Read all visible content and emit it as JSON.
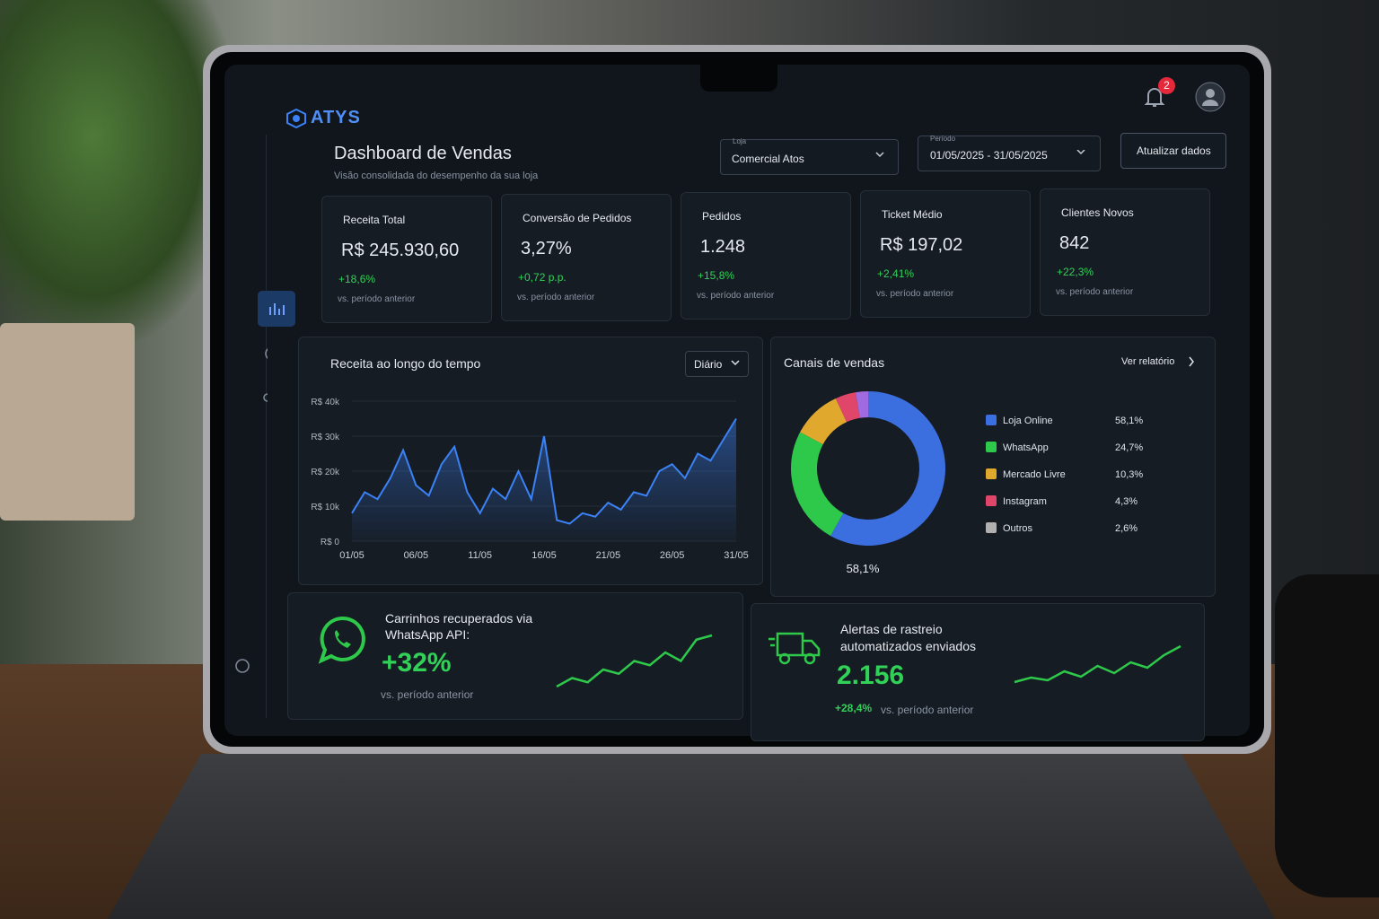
{
  "app": {
    "logo": "ATYS",
    "notifications": "2"
  },
  "header": {
    "title": "Dashboard de Vendas",
    "subtitle": "Visão consolidada do desempenho da sua loja",
    "store_label": "Loja",
    "store": "Comercial Atos",
    "period_label": "Período",
    "period": "01/05/2025 - 31/05/2025",
    "refresh": "Atualizar dados"
  },
  "kpis": [
    {
      "label": "Receita Total",
      "value": "R$ 245.930,60",
      "change": "+18,6%",
      "note": "vs. período anterior"
    },
    {
      "label": "Conversão de Pedidos",
      "value": "3,27%",
      "change": "+0,72 p.p.",
      "note": "vs. período anterior"
    },
    {
      "label": "Pedidos",
      "value": "1.248",
      "change": "+15,8%",
      "note": "vs. período anterior"
    },
    {
      "label": "Ticket Médio",
      "value": "R$ 197,02",
      "change": "+2,41%",
      "note": "vs. período anterior"
    },
    {
      "label": "Clientes Novos",
      "value": "842",
      "change": "+22,3%",
      "note": "vs. período anterior"
    }
  ],
  "revenue_chart": {
    "type": "line",
    "title": "Receita ao longo do tempo",
    "granularity": "Diário",
    "color": "#3b82f6",
    "categories": [
      "01/05",
      null,
      null,
      null,
      null,
      "06/05",
      null,
      null,
      null,
      null,
      "11/05",
      null,
      null,
      null,
      null,
      "16/05",
      null,
      null,
      null,
      null,
      "21/05",
      null,
      null,
      null,
      null,
      "26/05",
      null,
      null,
      null,
      null,
      "31/05"
    ],
    "values": [
      8000,
      14000,
      12000,
      18000,
      26000,
      16000,
      13000,
      22000,
      27000,
      14000,
      8000,
      15000,
      12000,
      20000,
      12000,
      30000,
      6000,
      5000,
      8000,
      7000,
      11000,
      9000,
      14000,
      13000,
      20000,
      22000,
      18000,
      25000,
      23000,
      29000,
      35000
    ],
    "ylim": [
      0,
      40000
    ],
    "yticks": [
      {
        "value": 0,
        "label": "R$ 0"
      },
      {
        "value": 10000,
        "label": "R$ 10k"
      },
      {
        "value": 20000,
        "label": "R$ 20k"
      },
      {
        "value": 30000,
        "label": "R$ 30k"
      },
      {
        "value": 40000,
        "label": "R$ 40k"
      }
    ],
    "grid": true
  },
  "channels_chart": {
    "type": "donut",
    "title": "Canais de vendas",
    "link": "Ver relatório",
    "categories": [
      "Loja Online",
      "WhatsApp",
      "Mercado Livre",
      "Instagram",
      "Outros"
    ],
    "values": [
      58.1,
      24.7,
      10.3,
      4.3,
      2.6
    ],
    "value_labels": [
      "58,1%",
      "24,7%",
      "10,3%",
      "4,3%",
      "2,6%"
    ],
    "colors": [
      "#3b6fe0",
      "#2ec94a",
      "#e0a92e",
      "#e0456a",
      "#a06ae0"
    ],
    "legend_colors": [
      "#3b6fe0",
      "#2ec94a",
      "#e0a92e",
      "#e0456a",
      "#b0b0b0"
    ]
  },
  "highlights": [
    {
      "title": "Carrinhos recuperados via WhatsApp API:",
      "value": "+32%",
      "note": "vs. período anterior",
      "trend": [
        2,
        3,
        2.5,
        4,
        3.5,
        5,
        4.5,
        6,
        5,
        7.5,
        8
      ]
    },
    {
      "title": "Alertas de rastreio automatizados enviados",
      "value": "2.156",
      "change": "+28,4%",
      "note": "vs. período anterior",
      "trend": [
        2,
        2.5,
        2.2,
        3.2,
        2.6,
        3.8,
        3,
        4.2,
        3.6,
        5,
        6
      ]
    }
  ]
}
